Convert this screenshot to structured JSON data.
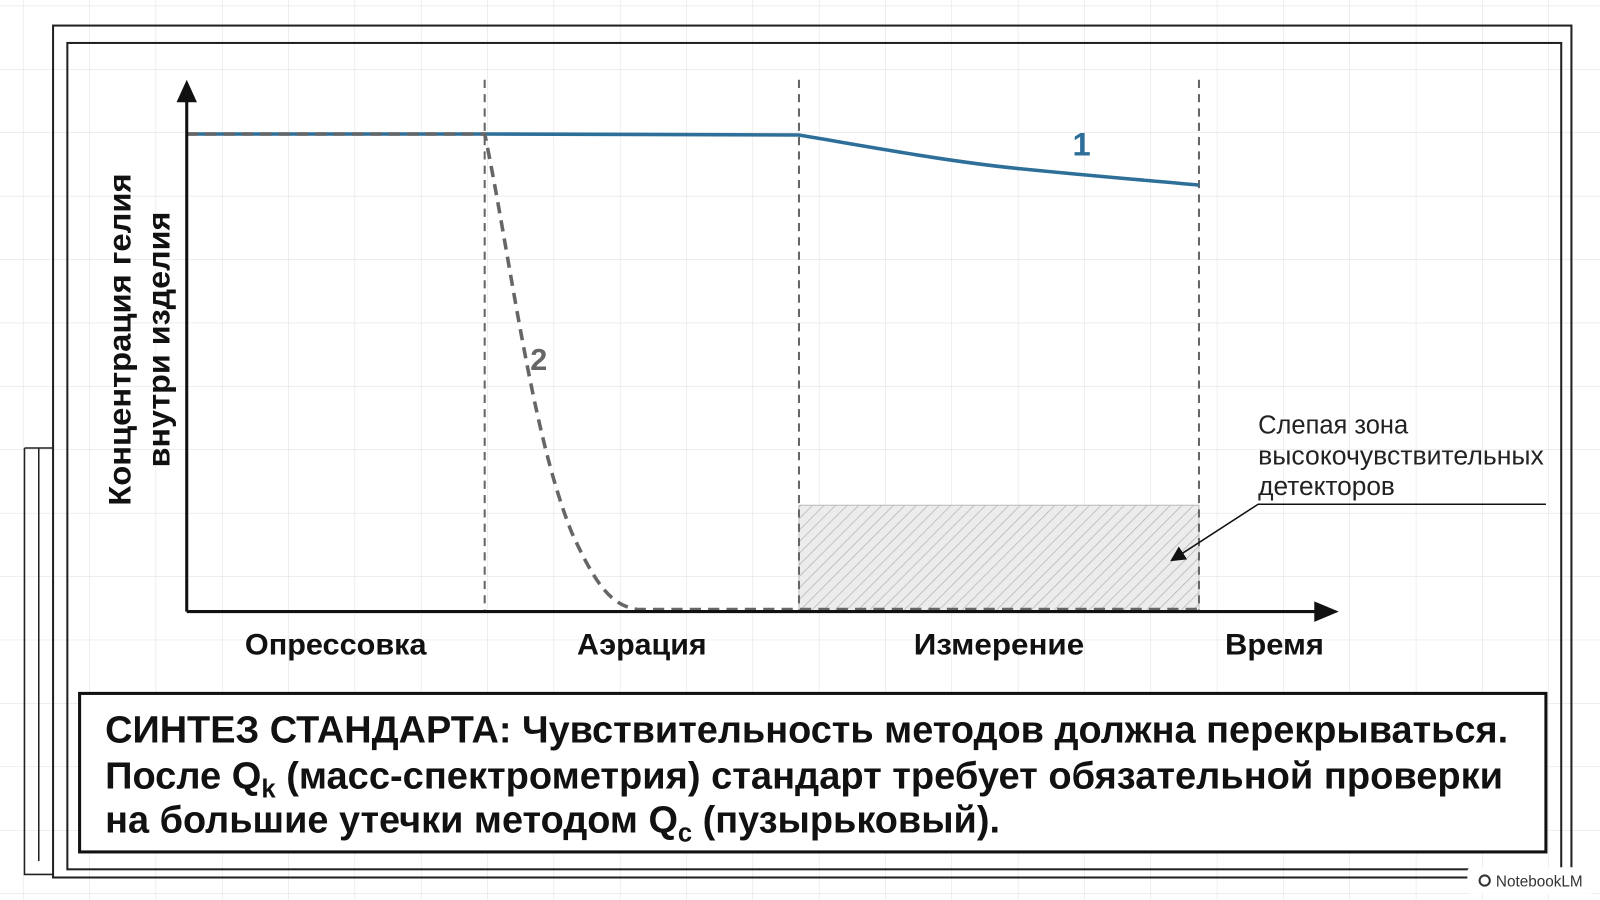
{
  "diagram": {
    "y_axis_label": [
      "Концентрация гелия",
      "внутри изделия"
    ],
    "x_axis_label": "Время",
    "curves": [
      {
        "label": "1"
      },
      {
        "label": "2"
      }
    ],
    "phases": [
      "Опрессовка",
      "Аэрация",
      "Измерение"
    ],
    "blind_zone_label": [
      "Слепая зона",
      "высокочувствительных",
      "детекторов"
    ]
  },
  "synthesis": {
    "line1": "СИНТЕЗ СТАНДАРТА: Чувствительность методов должна перекрываться.",
    "line2": {
      "before": "После Q",
      "sub": "k",
      "after": " (масс-спектрометрия) стандарт требует обязательной проверки"
    },
    "line3": {
      "before": "на большие утечки методом Q",
      "sub": "c",
      "after": " (пузырьковый)."
    }
  },
  "watermark": "NotebookLM"
}
